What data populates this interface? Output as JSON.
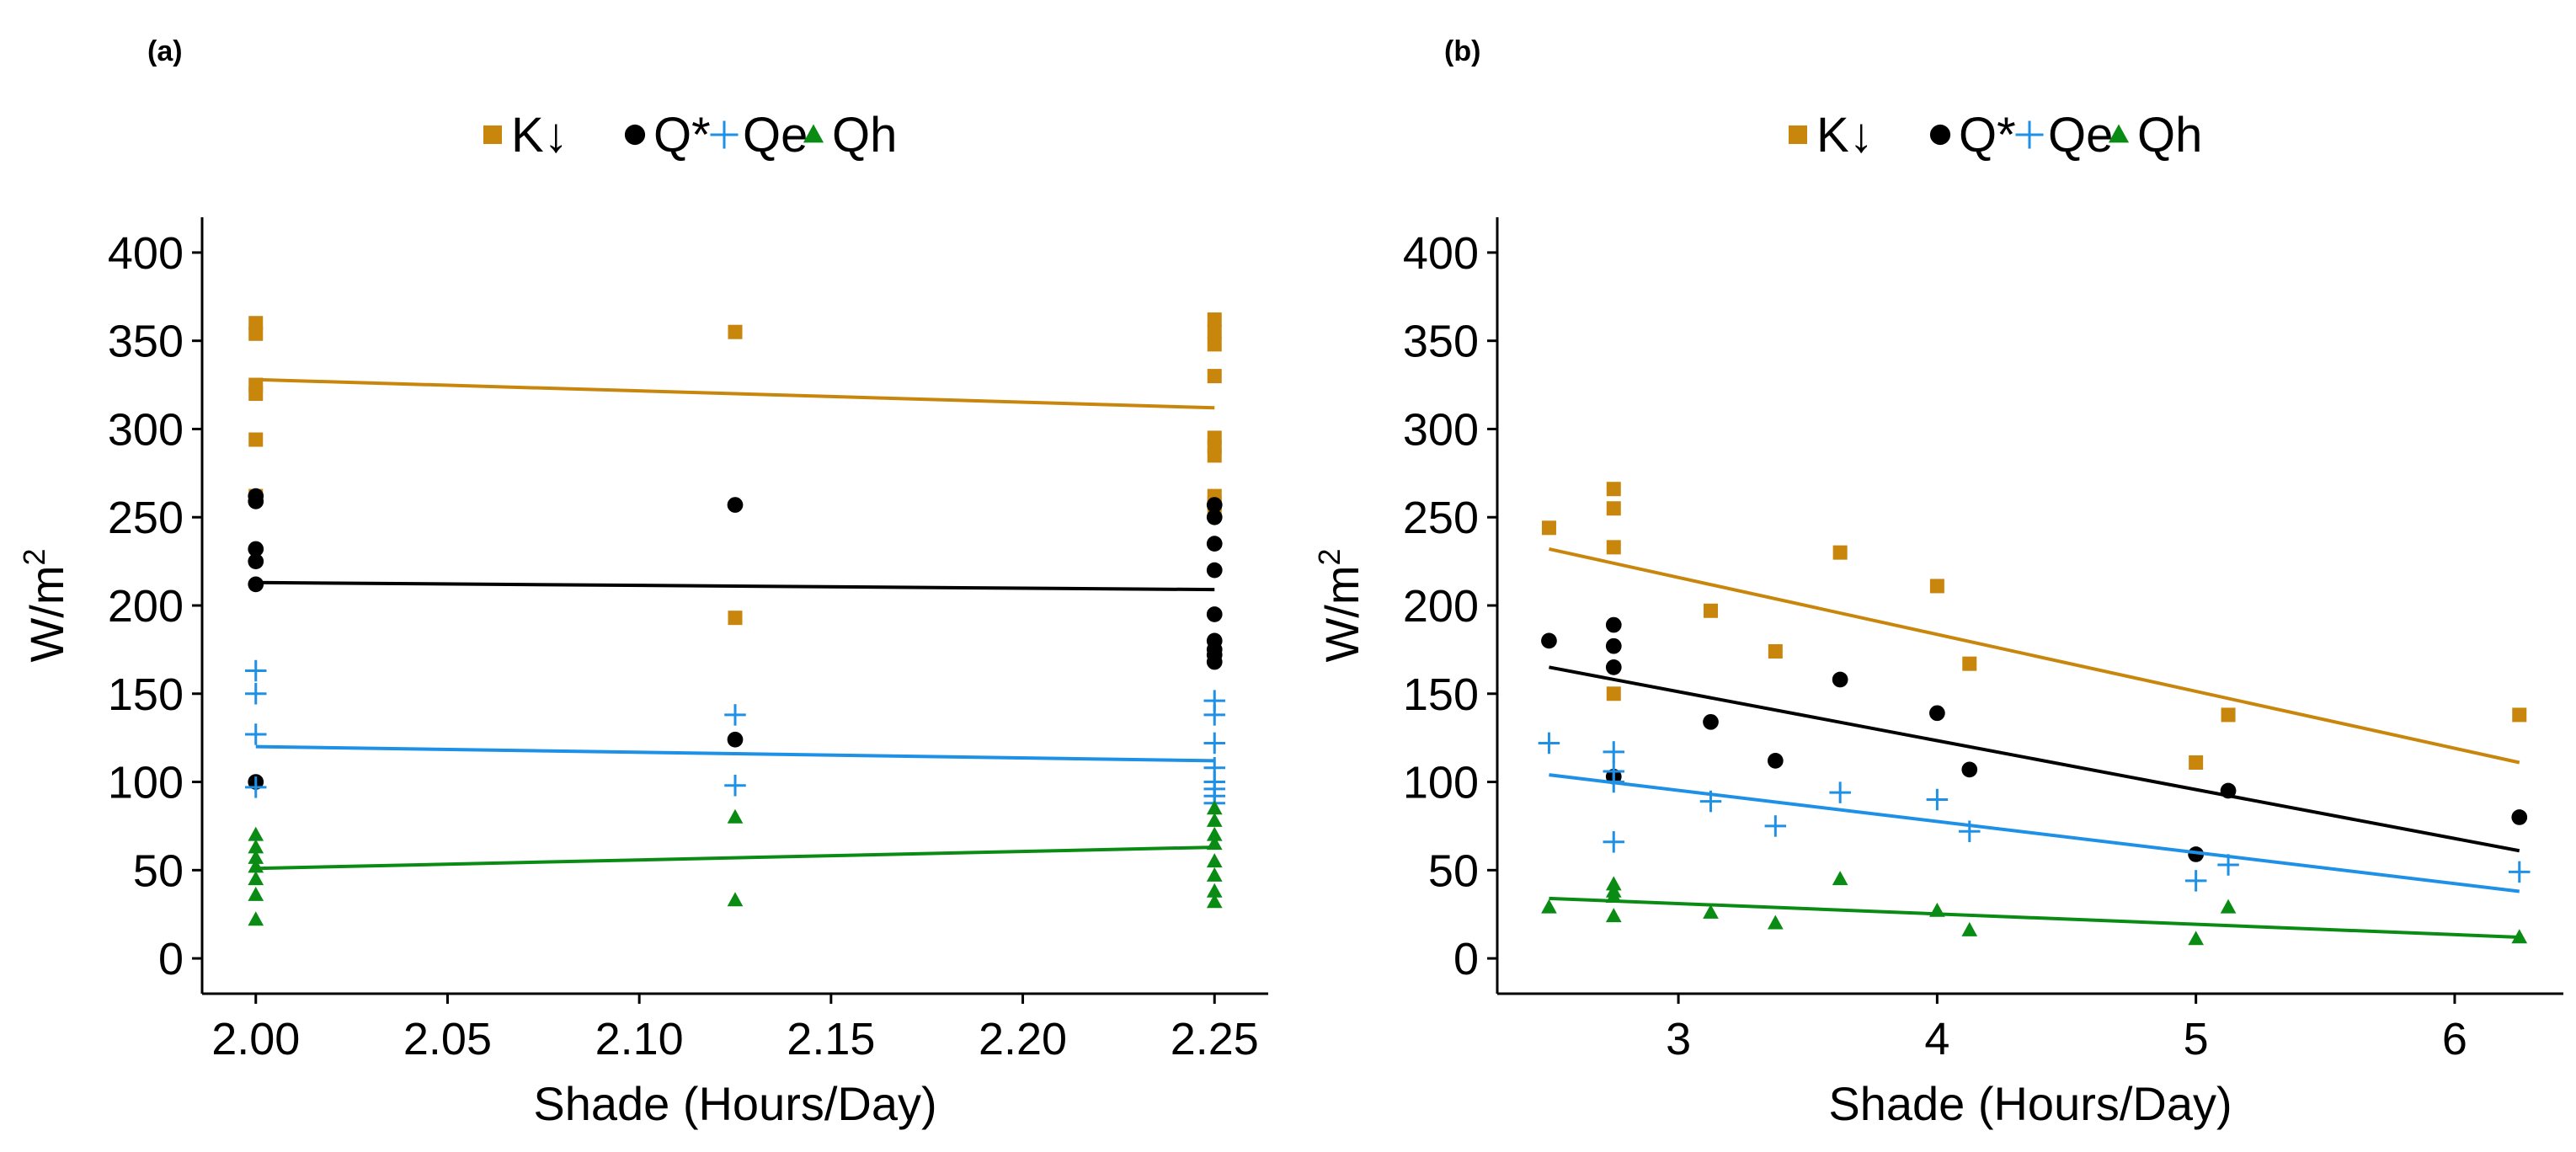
{
  "colors": {
    "K_down": "#C8860D",
    "Q_star": "#000000",
    "Qe": "#1E90E6",
    "Qh": "#0A8C14",
    "axis": "#000000"
  },
  "legend": {
    "entries": [
      {
        "key": "K_down",
        "label": "K↓",
        "marker": "square"
      },
      {
        "key": "Q_star",
        "label": "Q*",
        "marker": "circle"
      },
      {
        "key": "Qe",
        "label": "Qe",
        "marker": "plus"
      },
      {
        "key": "Qh",
        "label": "Qh",
        "marker": "triangle"
      }
    ]
  },
  "chart_data": [
    {
      "type": "scatter",
      "panel_label": "(a)",
      "xlabel": "Shade (Hours/Day)",
      "ylabel": "W/m",
      "ylabel_superscript": "2",
      "xlim": [
        1.986,
        2.264
      ],
      "ylim": [
        -20,
        420
      ],
      "xticks": [
        2.0,
        2.05,
        2.1,
        2.15,
        2.2,
        2.25
      ],
      "xtick_labels": [
        "2.00",
        "2.05",
        "2.10",
        "2.15",
        "2.20",
        "2.25"
      ],
      "yticks": [
        0,
        50,
        100,
        150,
        200,
        250,
        300,
        350,
        400
      ],
      "ytick_labels": [
        "0",
        "50",
        "100",
        "150",
        "200",
        "250",
        "300",
        "350",
        "400"
      ],
      "series": [
        {
          "key": "K_down",
          "name": "K↓",
          "x": [
            2,
            2,
            2,
            2,
            2,
            2,
            2.125,
            2.125,
            2.25,
            2.25,
            2.25,
            2.25,
            2.25,
            2.25,
            2.25,
            2.25,
            2.25,
            2.25
          ],
          "y": [
            360,
            354,
            325,
            320,
            294,
            262,
            355,
            193,
            362,
            355,
            348,
            330,
            295,
            290,
            285,
            262,
            258,
            255
          ],
          "fit": [
            [
              2.0,
              328
            ],
            [
              2.25,
              312
            ]
          ]
        },
        {
          "key": "Q_star",
          "name": "Q*",
          "x": [
            2,
            2,
            2,
            2,
            2,
            2,
            2.125,
            2.125,
            2.25,
            2.25,
            2.25,
            2.25,
            2.25,
            2.25,
            2.25,
            2.25,
            2.25
          ],
          "y": [
            262,
            259,
            232,
            225,
            212,
            100,
            257,
            124,
            257,
            250,
            235,
            220,
            195,
            180,
            175,
            172,
            168
          ],
          "fit": [
            [
              2.0,
              213
            ],
            [
              2.25,
              209
            ]
          ]
        },
        {
          "key": "Qe",
          "name": "Qe",
          "x": [
            2,
            2,
            2,
            2,
            2.125,
            2.125,
            2.25,
            2.25,
            2.25,
            2.25,
            2.25,
            2.25,
            2.25,
            2.25
          ],
          "y": [
            163,
            150,
            127,
            97,
            138,
            98,
            146,
            138,
            122,
            108,
            100,
            96,
            92,
            88
          ],
          "fit": [
            [
              2.0,
              120
            ],
            [
              2.25,
              112
            ]
          ]
        },
        {
          "key": "Qh",
          "name": "Qh",
          "x": [
            2,
            2,
            2,
            2,
            2,
            2,
            2,
            2.125,
            2.125,
            2.25,
            2.25,
            2.25,
            2.25,
            2.25,
            2.25,
            2.25,
            2.25
          ],
          "y": [
            70,
            63,
            57,
            52,
            45,
            36,
            22,
            80,
            33,
            85,
            78,
            70,
            65,
            55,
            47,
            38,
            32
          ],
          "fit": [
            [
              2.0,
              51
            ],
            [
              2.25,
              63
            ]
          ]
        }
      ]
    },
    {
      "type": "scatter",
      "panel_label": "(b)",
      "xlabel": "Shade (Hours/Day)",
      "ylabel": "W/m",
      "ylabel_superscript": "2",
      "xlim": [
        2.3,
        6.42
      ],
      "ylim": [
        -20,
        420
      ],
      "xticks": [
        3,
        4,
        5,
        6
      ],
      "xtick_labels": [
        "3",
        "4",
        "5",
        "6"
      ],
      "yticks": [
        0,
        50,
        100,
        150,
        200,
        250,
        300,
        350,
        400
      ],
      "ytick_labels": [
        "0",
        "50",
        "100",
        "150",
        "200",
        "250",
        "300",
        "350",
        "400"
      ],
      "series": [
        {
          "key": "K_down",
          "name": "K↓",
          "x": [
            2.5,
            2.75,
            2.75,
            2.75,
            2.75,
            3.125,
            3.375,
            3.625,
            4.0,
            4.125,
            5.0,
            5.125,
            6.25
          ],
          "y": [
            244,
            266,
            255,
            233,
            150,
            197,
            174,
            230,
            211,
            167,
            111,
            138,
            138
          ],
          "fit": [
            [
              2.5,
              232
            ],
            [
              6.25,
              111
            ]
          ]
        },
        {
          "key": "Q_star",
          "name": "Q*",
          "x": [
            2.5,
            2.75,
            2.75,
            2.75,
            2.75,
            3.125,
            3.375,
            3.625,
            4.0,
            4.125,
            5.0,
            5.125,
            6.25
          ],
          "y": [
            180,
            189,
            177,
            165,
            103,
            134,
            112,
            158,
            139,
            107,
            59,
            95,
            80
          ],
          "fit": [
            [
              2.5,
              165
            ],
            [
              6.25,
              61
            ]
          ]
        },
        {
          "key": "Qe",
          "name": "Qe",
          "x": [
            2.5,
            2.75,
            2.75,
            2.75,
            2.75,
            3.125,
            3.375,
            3.625,
            4.0,
            4.125,
            5.0,
            5.125,
            6.25
          ],
          "y": [
            122,
            117,
            106,
            100,
            66,
            89,
            75,
            94,
            90,
            72,
            44,
            53,
            49
          ],
          "fit": [
            [
              2.5,
              104
            ],
            [
              6.25,
              38
            ]
          ]
        },
        {
          "key": "Qh",
          "name": "Qh",
          "x": [
            2.5,
            2.75,
            2.75,
            2.75,
            2.75,
            3.125,
            3.375,
            3.625,
            4.0,
            4.125,
            5.0,
            5.125,
            6.25
          ],
          "y": [
            29,
            42,
            38,
            35,
            24,
            26,
            20,
            45,
            27,
            16,
            11,
            29,
            12
          ],
          "fit": [
            [
              2.5,
              34
            ],
            [
              6.25,
              12
            ]
          ]
        }
      ]
    }
  ]
}
